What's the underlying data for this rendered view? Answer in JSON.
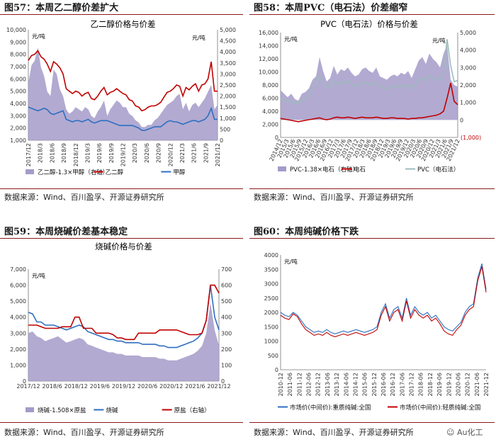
{
  "source_label": "数据来源：Wind、百川盈孚、开源证券研究所",
  "watermark": "Au化工",
  "colors": {
    "purple": "#a49bc9",
    "red": "#c00000",
    "blue": "#2e6fc2",
    "gray": "#9cbcbc",
    "rule": "#8b1a1a"
  },
  "chart_data": [
    {
      "id": "fig57",
      "fig_title": "图57：本周乙二醇价差扩大",
      "title": "乙二醇价格与价差",
      "type": "line",
      "unit_label": "元/吨",
      "unit_label_right": "元/吨",
      "y_left": {
        "min": 1000,
        "max": 10000,
        "ticks": [
          "1,000",
          "2,000",
          "3,000",
          "4,000",
          "5,000",
          "6,000",
          "7,000",
          "8,000",
          "9,000",
          "10,000"
        ]
      },
      "y_right": {
        "min": 0,
        "max": 5000,
        "ticks": [
          "0",
          "500",
          "1,000",
          "1,500",
          "2,000",
          "2,500",
          "3,000",
          "3,500",
          "4,000",
          "4,500",
          "5,000"
        ]
      },
      "x_ticks": [
        "2017/12",
        "2018/3",
        "2018/6",
        "2018/9",
        "2018/12",
        "2019/3",
        "2019/6",
        "2019/9",
        "2019/12",
        "2020/3",
        "2020/6",
        "2020/9",
        "2020/12",
        "2021/3",
        "2021/6",
        "2021/9",
        "2021/12"
      ],
      "legend": [
        "乙二醇-1.3×甲醇（右轴）",
        "乙二醇",
        "甲醇"
      ],
      "series": [
        {
          "name": "乙二醇-1.3×甲醇（右轴）",
          "axis": "right",
          "kind": "area",
          "values": [
            2600,
            3400,
            3600,
            4200,
            3300,
            2900,
            2200,
            2000,
            3200,
            3000,
            2300,
            2000,
            1400,
            1200,
            1300,
            1500,
            1400,
            1300,
            1500,
            1400,
            1100,
            1000,
            1300,
            1500,
            1800,
            1100,
            1400,
            1600,
            1800,
            1700,
            1500,
            1500,
            1200,
            1100,
            900,
            800,
            600,
            600,
            700,
            700,
            900,
            1000,
            1200,
            1400,
            1600,
            1700,
            1800,
            2000,
            2100,
            1400,
            1700,
            1300,
            1600,
            1700,
            1500,
            1700,
            1900,
            2200,
            2500,
            1400,
            1600
          ]
        },
        {
          "name": "乙二醇",
          "axis": "left",
          "kind": "line",
          "values": [
            7500,
            7900,
            8000,
            8300,
            7800,
            7600,
            7200,
            6600,
            7400,
            7200,
            6900,
            6400,
            5200,
            5000,
            4800,
            5000,
            4900,
            4600,
            4800,
            4900,
            4400,
            4300,
            4600,
            5000,
            5300,
            4700,
            4900,
            5000,
            5200,
            5000,
            4800,
            4700,
            4300,
            4200,
            3800,
            3700,
            3400,
            3500,
            3700,
            3800,
            3800,
            3900,
            4100,
            4500,
            4900,
            5000,
            5200,
            5500,
            5400,
            4600,
            5300,
            5100,
            5400,
            5600,
            5000,
            5500,
            5600,
            6000,
            7400,
            5000,
            5000
          ]
        },
        {
          "name": "甲醇",
          "axis": "left",
          "kind": "line",
          "values": [
            3700,
            3600,
            3500,
            3400,
            3500,
            3600,
            3500,
            3200,
            3100,
            3200,
            3300,
            3400,
            2700,
            2600,
            2500,
            2600,
            2600,
            2500,
            2600,
            2700,
            2500,
            2400,
            2500,
            2600,
            2600,
            2600,
            2500,
            2400,
            2300,
            2200,
            2200,
            2200,
            2200,
            2200,
            2100,
            2000,
            1800,
            1800,
            1900,
            2000,
            2100,
            2100,
            2100,
            2300,
            2500,
            2600,
            2500,
            2500,
            2400,
            2300,
            2400,
            2500,
            2600,
            2600,
            2500,
            2600,
            2700,
            3000,
            3600,
            2700,
            2700
          ]
        }
      ]
    },
    {
      "id": "fig58",
      "fig_title": "图58：本周PVC（电石法）价差缩窄",
      "title": "PVC（电石法）价格与价差",
      "type": "line",
      "unit_label": "元/吨",
      "unit_label_right": "元/吨",
      "neg_label": "(1,000)",
      "y_left": {
        "min": 0,
        "max": 16000,
        "ticks": [
          "0",
          "2,000",
          "4,000",
          "6,000",
          "8,000",
          "10,000",
          "12,000",
          "14,000",
          "16,000"
        ]
      },
      "y_right": {
        "min": -1000,
        "max": 5000,
        "ticks": [
          "0",
          "1,000",
          "2,000",
          "3,000",
          "4,000",
          "5,000"
        ]
      },
      "x_ticks": [
        "2014/12",
        "2015/3",
        "2015/6",
        "2015/9",
        "2015/12",
        "2016/3",
        "2016/6",
        "2016/9",
        "2016/12",
        "2017/3",
        "2017/6",
        "2017/9",
        "2017/12",
        "2018/3",
        "2018/6",
        "2018/9",
        "2018/12",
        "2019/3",
        "2019/6",
        "2019/9",
        "2019/12",
        "2020/3",
        "2020/6",
        "2020/9",
        "2020/12",
        "2021/3",
        "2021/6",
        "2021/9",
        "2021/12"
      ],
      "legend": [
        "PVC-1.38×电石（右轴）",
        "电石",
        "PVC（电石法）"
      ],
      "series": [
        {
          "name": "PVC-1.38×电石（右轴）",
          "axis": "right",
          "kind": "area",
          "values": [
            1700,
            1500,
            1300,
            1500,
            1200,
            1100,
            1500,
            1600,
            1800,
            2300,
            2500,
            3600,
            2800,
            2200,
            2400,
            3100,
            2600,
            2900,
            2800,
            3000,
            2700,
            2500,
            2600,
            2900,
            3000,
            2800,
            2700,
            3000,
            2500,
            2400,
            2300,
            2500,
            2600,
            2500,
            2700,
            2600,
            2800,
            2400,
            2900,
            3400,
            3600,
            3200,
            3800,
            3500,
            3300,
            3000,
            3800,
            4300,
            2300,
            2000,
            1900
          ]
        },
        {
          "name": "电石",
          "axis": "left",
          "kind": "line",
          "values": [
            2900,
            2800,
            2700,
            2600,
            2500,
            2400,
            2500,
            2600,
            2700,
            2800,
            2900,
            3000,
            2800,
            2700,
            2800,
            3000,
            3100,
            3000,
            3000,
            3100,
            3000,
            2900,
            3000,
            3100,
            3000,
            3000,
            3000,
            3100,
            3000,
            2900,
            2900,
            3000,
            3000,
            2900,
            2900,
            2900,
            2800,
            2900,
            2900,
            3000,
            3000,
            3100,
            3200,
            3300,
            3400,
            3600,
            4000,
            6000,
            8300,
            5500,
            5000
          ]
        },
        {
          "name": "PVC（电石法）",
          "axis": "left",
          "kind": "line",
          "values": [
            6000,
            5700,
            5400,
            5600,
            5300,
            5200,
            5700,
            6000,
            6400,
            7400,
            8000,
            9500,
            8500,
            7500,
            7700,
            8600,
            8100,
            8400,
            8300,
            8700,
            8200,
            7800,
            7900,
            8300,
            8400,
            8100,
            8000,
            8400,
            7800,
            7500,
            7400,
            7700,
            7800,
            7700,
            7900,
            7800,
            8000,
            7400,
            8100,
            8800,
            9200,
            8600,
            9500,
            9100,
            8900,
            8700,
            10000,
            15000,
            11000,
            8500,
            8700
          ]
        }
      ]
    },
    {
      "id": "fig59",
      "fig_title": "图59：本周烧碱价差基本稳定",
      "title": "烧碱价格与价差",
      "type": "line",
      "unit_label": "元/吨",
      "y_left": {
        "min": 0,
        "max": 7000,
        "ticks": [
          "0",
          "1,000",
          "2,000",
          "3,000",
          "4,000",
          "5,000",
          "6,000",
          "7,000"
        ]
      },
      "y_right": {
        "min": 0,
        "max": 700,
        "ticks": [
          "0",
          "100",
          "200",
          "300",
          "400",
          "500",
          "600",
          "700"
        ]
      },
      "x_ticks": [
        "2017/12",
        "2018/6",
        "2018/12",
        "2019/6",
        "2019/12",
        "2020/6",
        "2020/12",
        "2021/6",
        "2021/12"
      ],
      "legend": [
        "烧碱-1.508×原盐",
        "烧碱",
        "原盐（右轴）"
      ],
      "series": [
        {
          "name": "烧碱-1.508×原盐",
          "axis": "left",
          "kind": "area",
          "values": [
            3000,
            3100,
            2800,
            2700,
            2500,
            2600,
            2700,
            2800,
            2600,
            2400,
            2500,
            2600,
            2700,
            2600,
            2300,
            2200,
            2100,
            2000,
            1900,
            1800,
            1800,
            1700,
            1700,
            1600,
            1600,
            1600,
            1600,
            1500,
            1500,
            1500,
            1500,
            1400,
            1400,
            1300,
            1300,
            1300,
            1400,
            1500,
            1600,
            1700,
            1900,
            2200,
            3000,
            4900,
            3200,
            2200
          ]
        },
        {
          "name": "烧碱",
          "axis": "left",
          "kind": "line",
          "values": [
            4300,
            4200,
            3700,
            3700,
            3500,
            3500,
            3500,
            3400,
            3300,
            3200,
            3300,
            3400,
            3500,
            3400,
            3100,
            3000,
            2900,
            2800,
            2700,
            2600,
            2600,
            2500,
            2500,
            2400,
            2400,
            2400,
            2400,
            2300,
            2300,
            2300,
            2300,
            2200,
            2200,
            2100,
            2100,
            2100,
            2200,
            2300,
            2400,
            2500,
            2700,
            3000,
            3800,
            6000,
            4000,
            3200
          ]
        },
        {
          "name": "原盐（右轴）",
          "axis": "right",
          "kind": "line",
          "values": [
            350,
            350,
            350,
            340,
            330,
            330,
            330,
            330,
            340,
            340,
            340,
            400,
            400,
            330,
            330,
            330,
            300,
            300,
            300,
            300,
            290,
            270,
            270,
            260,
            260,
            260,
            300,
            300,
            300,
            300,
            300,
            320,
            320,
            320,
            320,
            320,
            310,
            300,
            290,
            290,
            290,
            300,
            380,
            600,
            600,
            550
          ]
        }
      ]
    },
    {
      "id": "fig60",
      "fig_title": "图60：本周纯碱价格下跌",
      "title": "",
      "type": "line",
      "unit_label": "元/吨",
      "y_left": {
        "min": 0,
        "max": 4000,
        "ticks": [
          "0",
          "500",
          "1000",
          "1500",
          "2000",
          "2500",
          "3000",
          "3500",
          "4000"
        ]
      },
      "x_ticks": [
        "2010-12",
        "2011-06",
        "2011-12",
        "2012-06",
        "2012-12",
        "2013-06",
        "2013-12",
        "2014-06",
        "2014-12",
        "2015-06",
        "2015-12",
        "2016-06",
        "2016-12",
        "2017-06",
        "2017-12",
        "2018-06",
        "2018-12",
        "2019-06",
        "2019-12",
        "2020-06",
        "2020-12",
        "2021-06",
        "2021-12"
      ],
      "legend": [
        "市场价(中间价):重质纯碱:全国",
        "市场价(中间价):轻质纯碱:全国"
      ],
      "series": [
        {
          "name": "市场价(中间价):重质纯碱:全国",
          "axis": "left",
          "kind": "line",
          "values": [
            2000,
            1900,
            1850,
            2000,
            1900,
            1700,
            1500,
            1400,
            1300,
            1350,
            1300,
            1400,
            1300,
            1250,
            1300,
            1350,
            1300,
            1350,
            1400,
            1350,
            1300,
            1350,
            1400,
            1500,
            2000,
            2300,
            1800,
            2100,
            2200,
            1800,
            2500,
            1900,
            2200,
            2000,
            1900,
            2000,
            1800,
            1900,
            1700,
            1500,
            1400,
            1350,
            1500,
            1650,
            2000,
            2200,
            2300,
            3200,
            3700,
            2800
          ]
        },
        {
          "name": "市场价(中间价):轻质纯碱:全国",
          "axis": "left",
          "kind": "line",
          "values": [
            1900,
            1800,
            1750,
            1950,
            1850,
            1600,
            1400,
            1300,
            1200,
            1250,
            1200,
            1300,
            1200,
            1150,
            1200,
            1250,
            1200,
            1250,
            1300,
            1250,
            1200,
            1250,
            1300,
            1400,
            1900,
            2200,
            1700,
            2000,
            2100,
            1700,
            2400,
            1800,
            2100,
            1900,
            1800,
            1900,
            1700,
            1800,
            1600,
            1350,
            1250,
            1200,
            1400,
            1550,
            1900,
            2100,
            2200,
            3100,
            3600,
            2700
          ]
        }
      ]
    }
  ]
}
